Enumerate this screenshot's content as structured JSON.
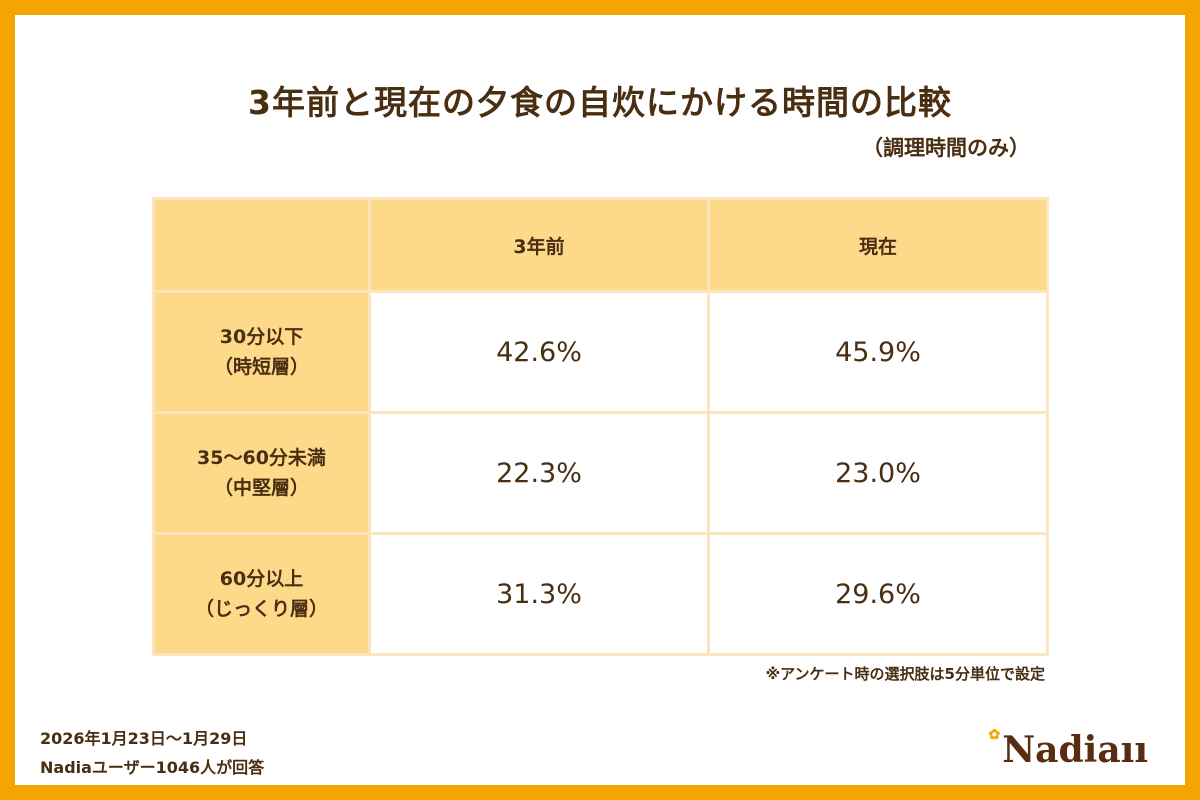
{
  "title": "3年前と現在の夕食の自炊にかける時間の比較",
  "subtitle": "（調理時間のみ）",
  "table": {
    "headers": [
      "",
      "3年前",
      "現在"
    ],
    "rows": [
      {
        "label1": "30分以下",
        "label2": "（時短層）",
        "before": "42.6%",
        "now": "45.9%"
      },
      {
        "label1": "35〜60分未満",
        "label2": "（中堅層）",
        "before": "22.3%",
        "now": "23.0%"
      },
      {
        "label1": "60分以上",
        "label2": "（じっくり層）",
        "before": "31.3%",
        "now": "29.6%"
      }
    ]
  },
  "note": "※アンケート時の選択肢は5分単位で設定",
  "footer": {
    "period": "2026年1月23日〜1月29日",
    "respondents": "Nadiaユーザー1046人が回答"
  },
  "logo": "Nadia",
  "colors": {
    "frame": "#F5A400",
    "header": "#FDD98A",
    "text": "#4A2E12"
  }
}
